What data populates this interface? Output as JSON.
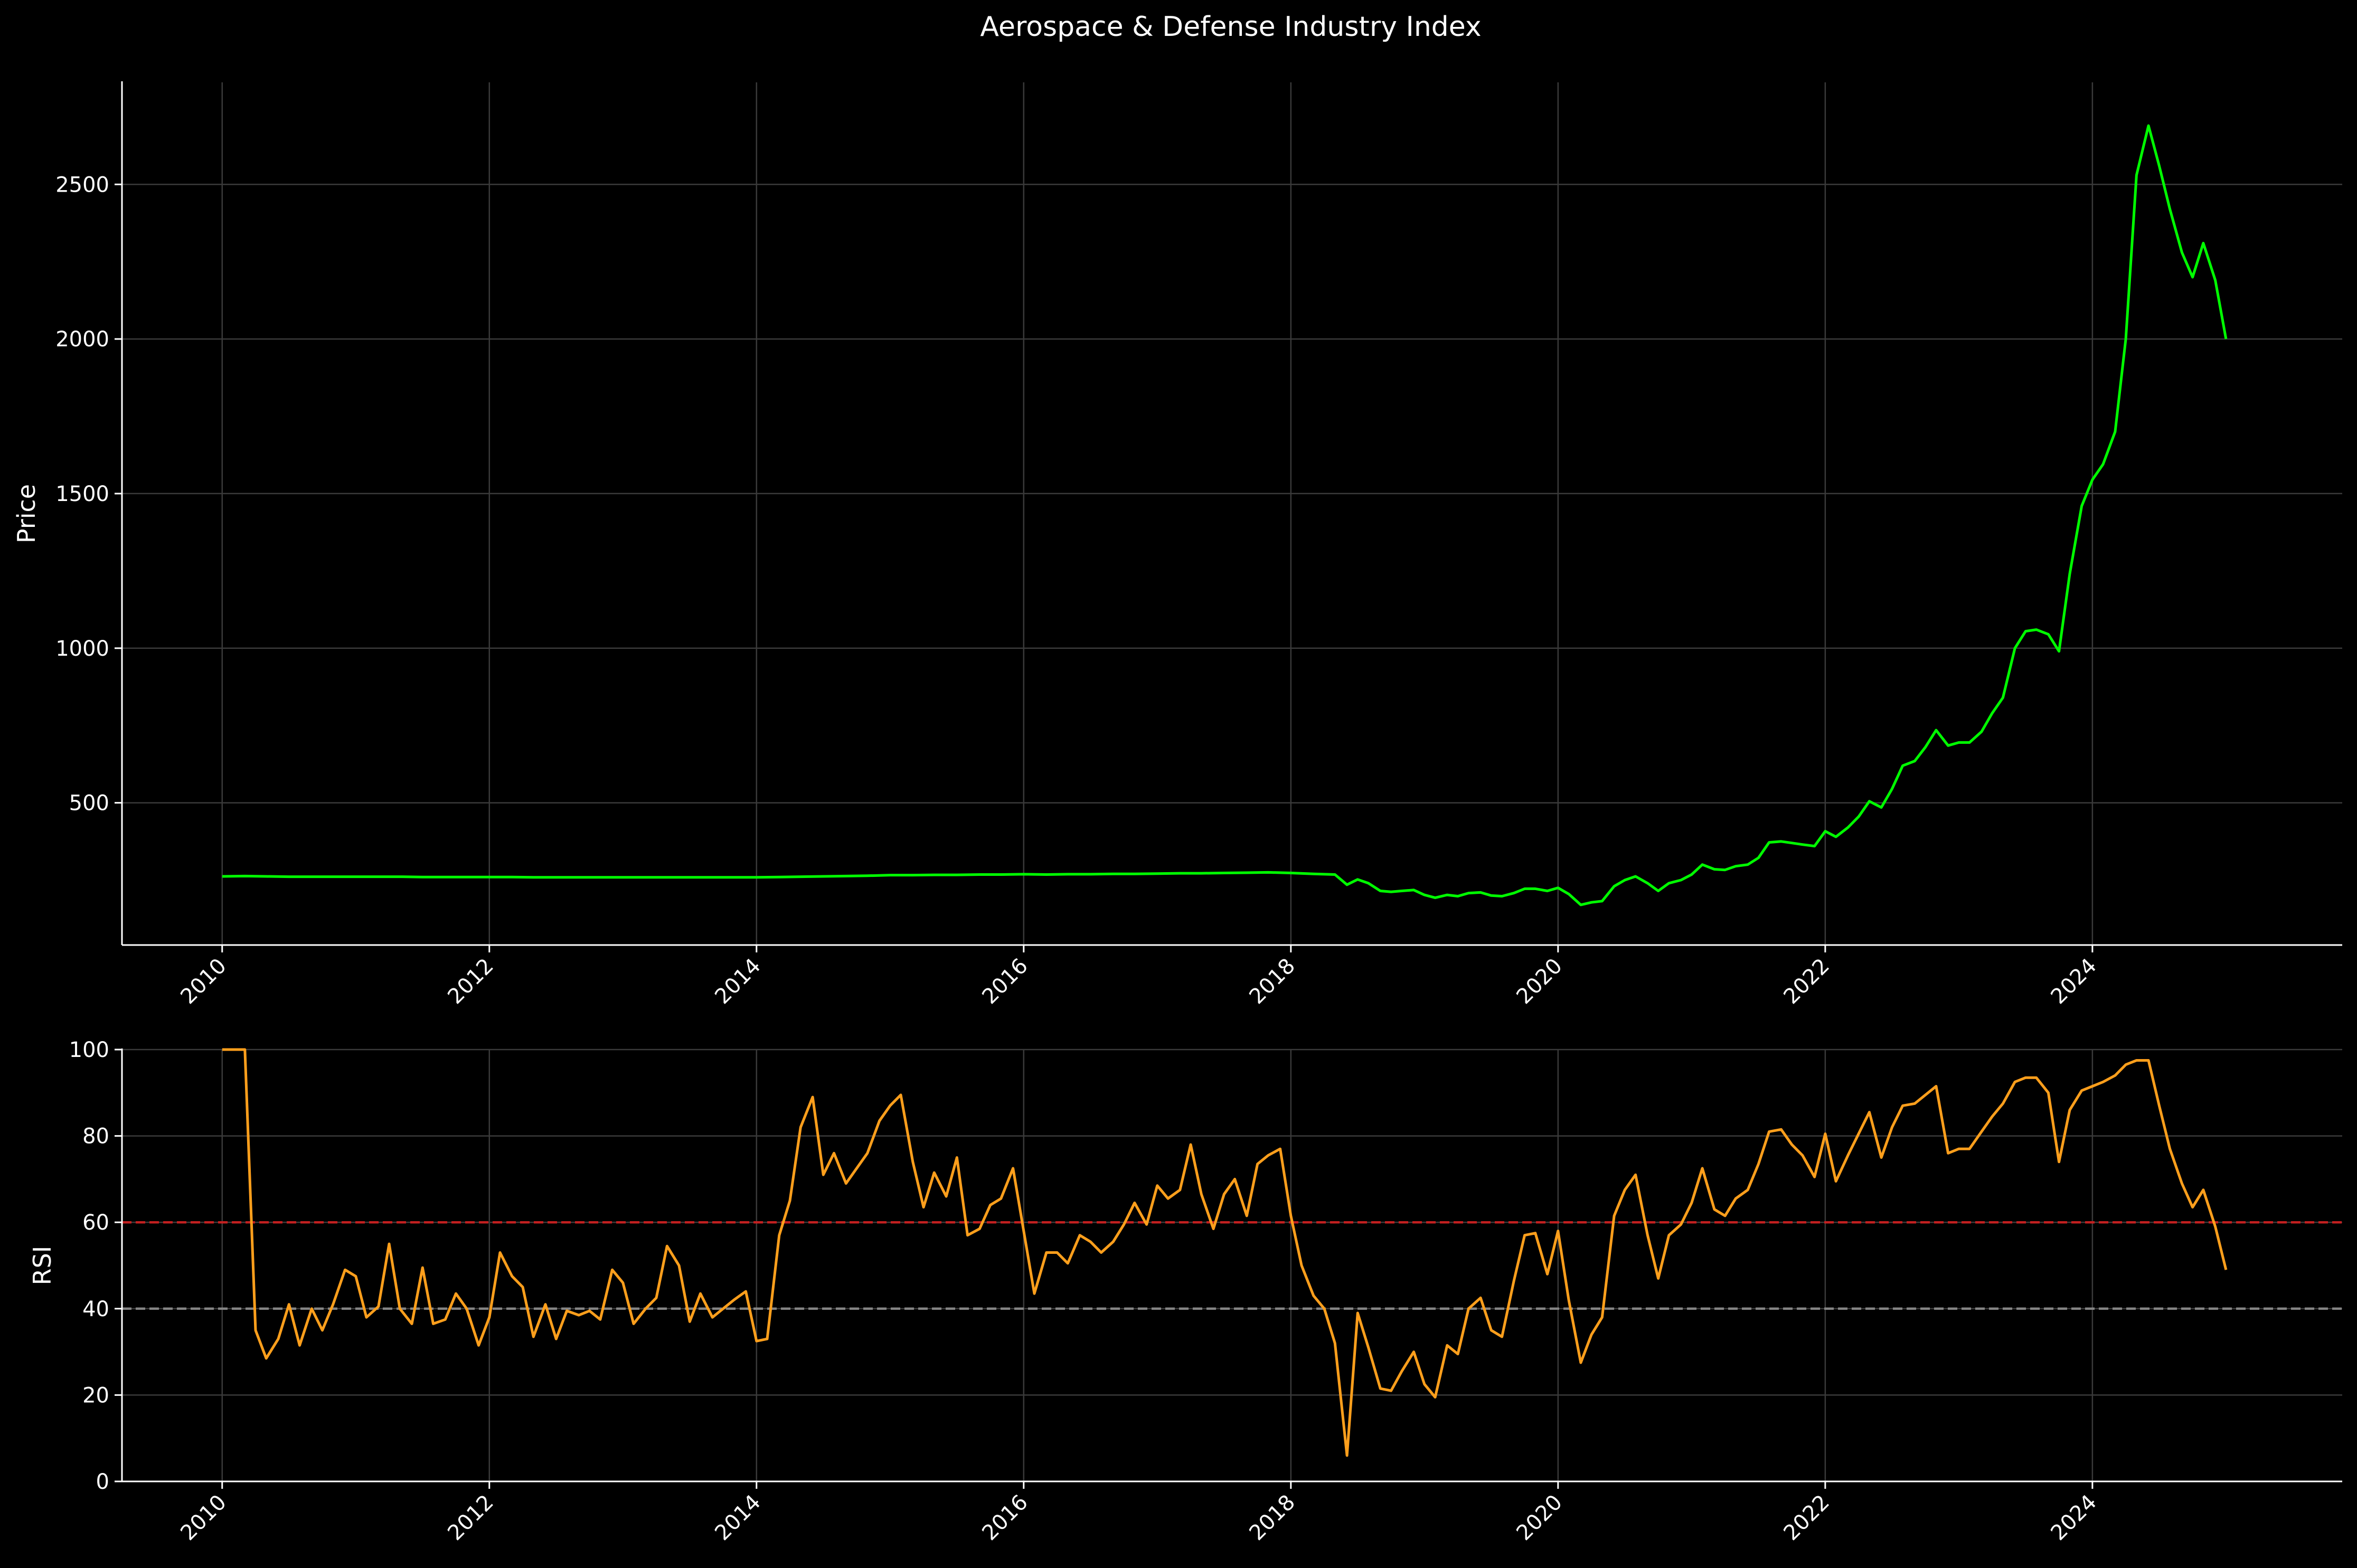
{
  "title": "Aerospace & Defense Industry Index",
  "colors": {
    "background": "#000000",
    "price_line": "#00ff00",
    "rsi_line": "#ff9f1c",
    "overbought_line": "#d21f1f",
    "oversold_line": "#8f8f8f",
    "grid": "#3a3a3a",
    "axis": "#ffffff",
    "text": "#ffffff"
  },
  "chart_data": [
    {
      "id": "price",
      "type": "line",
      "ylabel": "Price",
      "xlim": [
        2009.25,
        2025.87
      ],
      "ylim": [
        40,
        2830
      ],
      "yticks": [
        500,
        1000,
        1500,
        2000,
        2500
      ],
      "xticks": [
        2010,
        2012,
        2014,
        2016,
        2018,
        2020,
        2022,
        2024
      ],
      "grid": true,
      "series": [
        {
          "x": [
            2010.0,
            2010.17,
            2010.33,
            2010.5,
            2010.67,
            2010.83,
            2011.0,
            2011.17,
            2011.33,
            2011.5,
            2011.67,
            2011.83,
            2012.0,
            2012.17,
            2012.33,
            2012.5,
            2012.67,
            2012.83,
            2013.0,
            2013.17,
            2013.33,
            2013.5,
            2013.67,
            2013.83,
            2014.0,
            2014.17,
            2014.33,
            2014.5,
            2014.67,
            2014.83,
            2015.0,
            2015.17,
            2015.33,
            2015.5,
            2015.67,
            2015.83,
            2016.0,
            2016.17,
            2016.33,
            2016.5,
            2016.67,
            2016.83,
            2017.0,
            2017.17,
            2017.33,
            2017.5,
            2017.67,
            2017.83,
            2018.0,
            2018.17,
            2018.33,
            2018.42,
            2018.5,
            2018.58,
            2018.67,
            2018.75,
            2018.83,
            2018.92,
            2019.0,
            2019.08,
            2019.17,
            2019.25,
            2019.33,
            2019.42,
            2019.5,
            2019.58,
            2019.67,
            2019.75,
            2019.83,
            2019.92,
            2020.0,
            2020.08,
            2020.17,
            2020.25,
            2020.33,
            2020.42,
            2020.5,
            2020.58,
            2020.67,
            2020.75,
            2020.83,
            2020.92,
            2021.0,
            2021.08,
            2021.17,
            2021.25,
            2021.33,
            2021.42,
            2021.5,
            2021.58,
            2021.67,
            2021.75,
            2021.83,
            2021.92,
            2022.0,
            2022.08,
            2022.17,
            2022.25,
            2022.33,
            2022.42,
            2022.5,
            2022.58,
            2022.67,
            2022.75,
            2022.83,
            2022.92,
            2023.0,
            2023.08,
            2023.17,
            2023.25,
            2023.33,
            2023.42,
            2023.5,
            2023.58,
            2023.67,
            2023.75,
            2023.83,
            2023.92,
            2024.0,
            2024.08,
            2024.17,
            2024.25,
            2024.33,
            2024.42,
            2024.5,
            2024.58,
            2024.67,
            2024.75,
            2024.83,
            2024.92,
            2025.0
          ],
          "values": [
            262,
            263,
            262,
            261,
            261,
            261,
            261,
            261,
            261,
            260,
            260,
            260,
            260,
            260,
            259,
            259,
            259,
            259,
            259,
            259,
            259,
            259,
            259,
            259,
            259,
            260,
            261,
            262,
            263,
            264,
            266,
            266,
            267,
            267,
            268,
            268,
            269,
            268,
            269,
            269,
            270,
            270,
            271,
            272,
            272,
            273,
            274,
            275,
            273,
            270,
            268,
            235,
            252,
            240,
            215,
            212,
            215,
            218,
            202,
            193,
            202,
            198,
            208,
            210,
            200,
            198,
            208,
            222,
            222,
            215,
            225,
            205,
            170,
            178,
            182,
            230,
            250,
            262,
            240,
            215,
            240,
            250,
            268,
            300,
            285,
            283,
            295,
            300,
            322,
            372,
            375,
            370,
            365,
            360,
            408,
            390,
            420,
            455,
            505,
            485,
            545,
            620,
            635,
            680,
            735,
            685,
            695,
            695,
            730,
            790,
            840,
            1000,
            1055,
            1060,
            1045,
            990,
            1240,
            1460,
            1545,
            1595,
            1700,
            2000,
            2530,
            2690,
            2560,
            2420,
            2280,
            2200,
            2310,
            2190,
            2000
          ]
        }
      ]
    },
    {
      "id": "rsi",
      "type": "line",
      "ylabel": "RSI",
      "xlim": [
        2009.25,
        2025.87
      ],
      "ylim": [
        0,
        100
      ],
      "yticks": [
        0,
        20,
        40,
        60,
        80,
        100
      ],
      "xticks": [
        2010,
        2012,
        2014,
        2016,
        2018,
        2020,
        2022,
        2024
      ],
      "grid": true,
      "reference_lines": [
        60,
        40
      ],
      "series": [
        {
          "x": [
            2010.0,
            2010.08,
            2010.17,
            2010.25,
            2010.33,
            2010.42,
            2010.5,
            2010.58,
            2010.67,
            2010.75,
            2010.83,
            2010.92,
            2011.0,
            2011.08,
            2011.17,
            2011.25,
            2011.33,
            2011.42,
            2011.5,
            2011.58,
            2011.67,
            2011.75,
            2011.83,
            2011.92,
            2012.0,
            2012.08,
            2012.17,
            2012.25,
            2012.33,
            2012.42,
            2012.5,
            2012.58,
            2012.67,
            2012.75,
            2012.83,
            2012.92,
            2013.0,
            2013.08,
            2013.17,
            2013.25,
            2013.33,
            2013.42,
            2013.5,
            2013.58,
            2013.67,
            2013.75,
            2013.83,
            2013.92,
            2014.0,
            2014.08,
            2014.17,
            2014.25,
            2014.33,
            2014.42,
            2014.5,
            2014.58,
            2014.67,
            2014.75,
            2014.83,
            2014.92,
            2015.0,
            2015.08,
            2015.17,
            2015.25,
            2015.33,
            2015.42,
            2015.5,
            2015.58,
            2015.67,
            2015.75,
            2015.83,
            2015.92,
            2016.0,
            2016.08,
            2016.17,
            2016.25,
            2016.33,
            2016.42,
            2016.5,
            2016.58,
            2016.67,
            2016.75,
            2016.83,
            2016.92,
            2017.0,
            2017.08,
            2017.17,
            2017.25,
            2017.33,
            2017.42,
            2017.5,
            2017.58,
            2017.67,
            2017.75,
            2017.83,
            2017.92,
            2018.0,
            2018.08,
            2018.17,
            2018.25,
            2018.33,
            2018.42,
            2018.5,
            2018.58,
            2018.67,
            2018.75,
            2018.83,
            2018.92,
            2019.0,
            2019.08,
            2019.17,
            2019.25,
            2019.33,
            2019.42,
            2019.5,
            2019.58,
            2019.67,
            2019.75,
            2019.83,
            2019.92,
            2020.0,
            2020.08,
            2020.17,
            2020.25,
            2020.33,
            2020.42,
            2020.5,
            2020.58,
            2020.67,
            2020.75,
            2020.83,
            2020.92,
            2021.0,
            2021.08,
            2021.17,
            2021.25,
            2021.33,
            2021.42,
            2021.5,
            2021.58,
            2021.67,
            2021.75,
            2021.83,
            2021.92,
            2022.0,
            2022.08,
            2022.17,
            2022.25,
            2022.33,
            2022.42,
            2022.5,
            2022.58,
            2022.67,
            2022.75,
            2022.83,
            2022.92,
            2023.0,
            2023.08,
            2023.17,
            2023.25,
            2023.33,
            2023.42,
            2023.5,
            2023.58,
            2023.67,
            2023.75,
            2023.83,
            2023.92,
            2024.0,
            2024.08,
            2024.17,
            2024.25,
            2024.33,
            2024.42,
            2024.5,
            2024.58,
            2024.67,
            2024.75,
            2024.83,
            2024.92,
            2025.0
          ],
          "values": [
            100,
            100,
            100,
            35,
            28.5,
            33,
            41,
            31.5,
            40,
            35,
            41,
            49,
            47.5,
            38,
            40.5,
            55,
            40,
            36.5,
            49.5,
            36.5,
            37.5,
            43.5,
            40,
            31.5,
            38,
            53,
            47.5,
            45,
            33.5,
            41,
            33,
            39.5,
            38.5,
            39.5,
            37.5,
            49,
            46,
            36.5,
            40,
            42.5,
            54.5,
            50,
            37,
            43.5,
            38,
            40,
            42,
            44,
            32.5,
            33,
            57,
            65,
            82,
            89,
            71,
            76,
            69,
            72.5,
            76,
            83.5,
            87,
            89.5,
            74,
            63.5,
            71.5,
            66,
            75,
            57,
            58.5,
            64,
            65.5,
            72.5,
            58,
            43.5,
            53,
            53,
            50.5,
            57,
            55.5,
            53,
            55.5,
            59.5,
            64.5,
            59.5,
            68.5,
            65.5,
            67.5,
            78,
            66.5,
            58.5,
            66.5,
            70,
            61.5,
            73.5,
            75.5,
            77,
            61.5,
            50,
            43,
            40,
            32,
            6,
            39,
            31,
            21.5,
            21,
            25.5,
            30,
            22.5,
            19.5,
            31.5,
            29.5,
            40,
            42.5,
            35,
            33.5,
            46.5,
            57,
            57.5,
            48,
            58,
            42,
            27.5,
            34,
            38,
            61.5,
            67.5,
            71,
            57,
            47,
            57,
            59.5,
            64.5,
            72.5,
            63,
            61.5,
            65.5,
            67.5,
            73.5,
            81,
            81.5,
            78,
            75.5,
            70.5,
            80.5,
            69.5,
            75.5,
            80.5,
            85.5,
            75,
            82,
            87,
            87.5,
            89.5,
            91.5,
            76,
            77,
            77,
            81,
            84.5,
            87.5,
            92.5,
            93.5,
            93.5,
            90,
            74,
            86,
            90.5,
            91.5,
            92.5,
            94,
            96.5,
            97.5,
            97.5,
            87,
            77,
            69,
            63.5,
            67.5,
            59,
            49
          ]
        }
      ]
    }
  ]
}
